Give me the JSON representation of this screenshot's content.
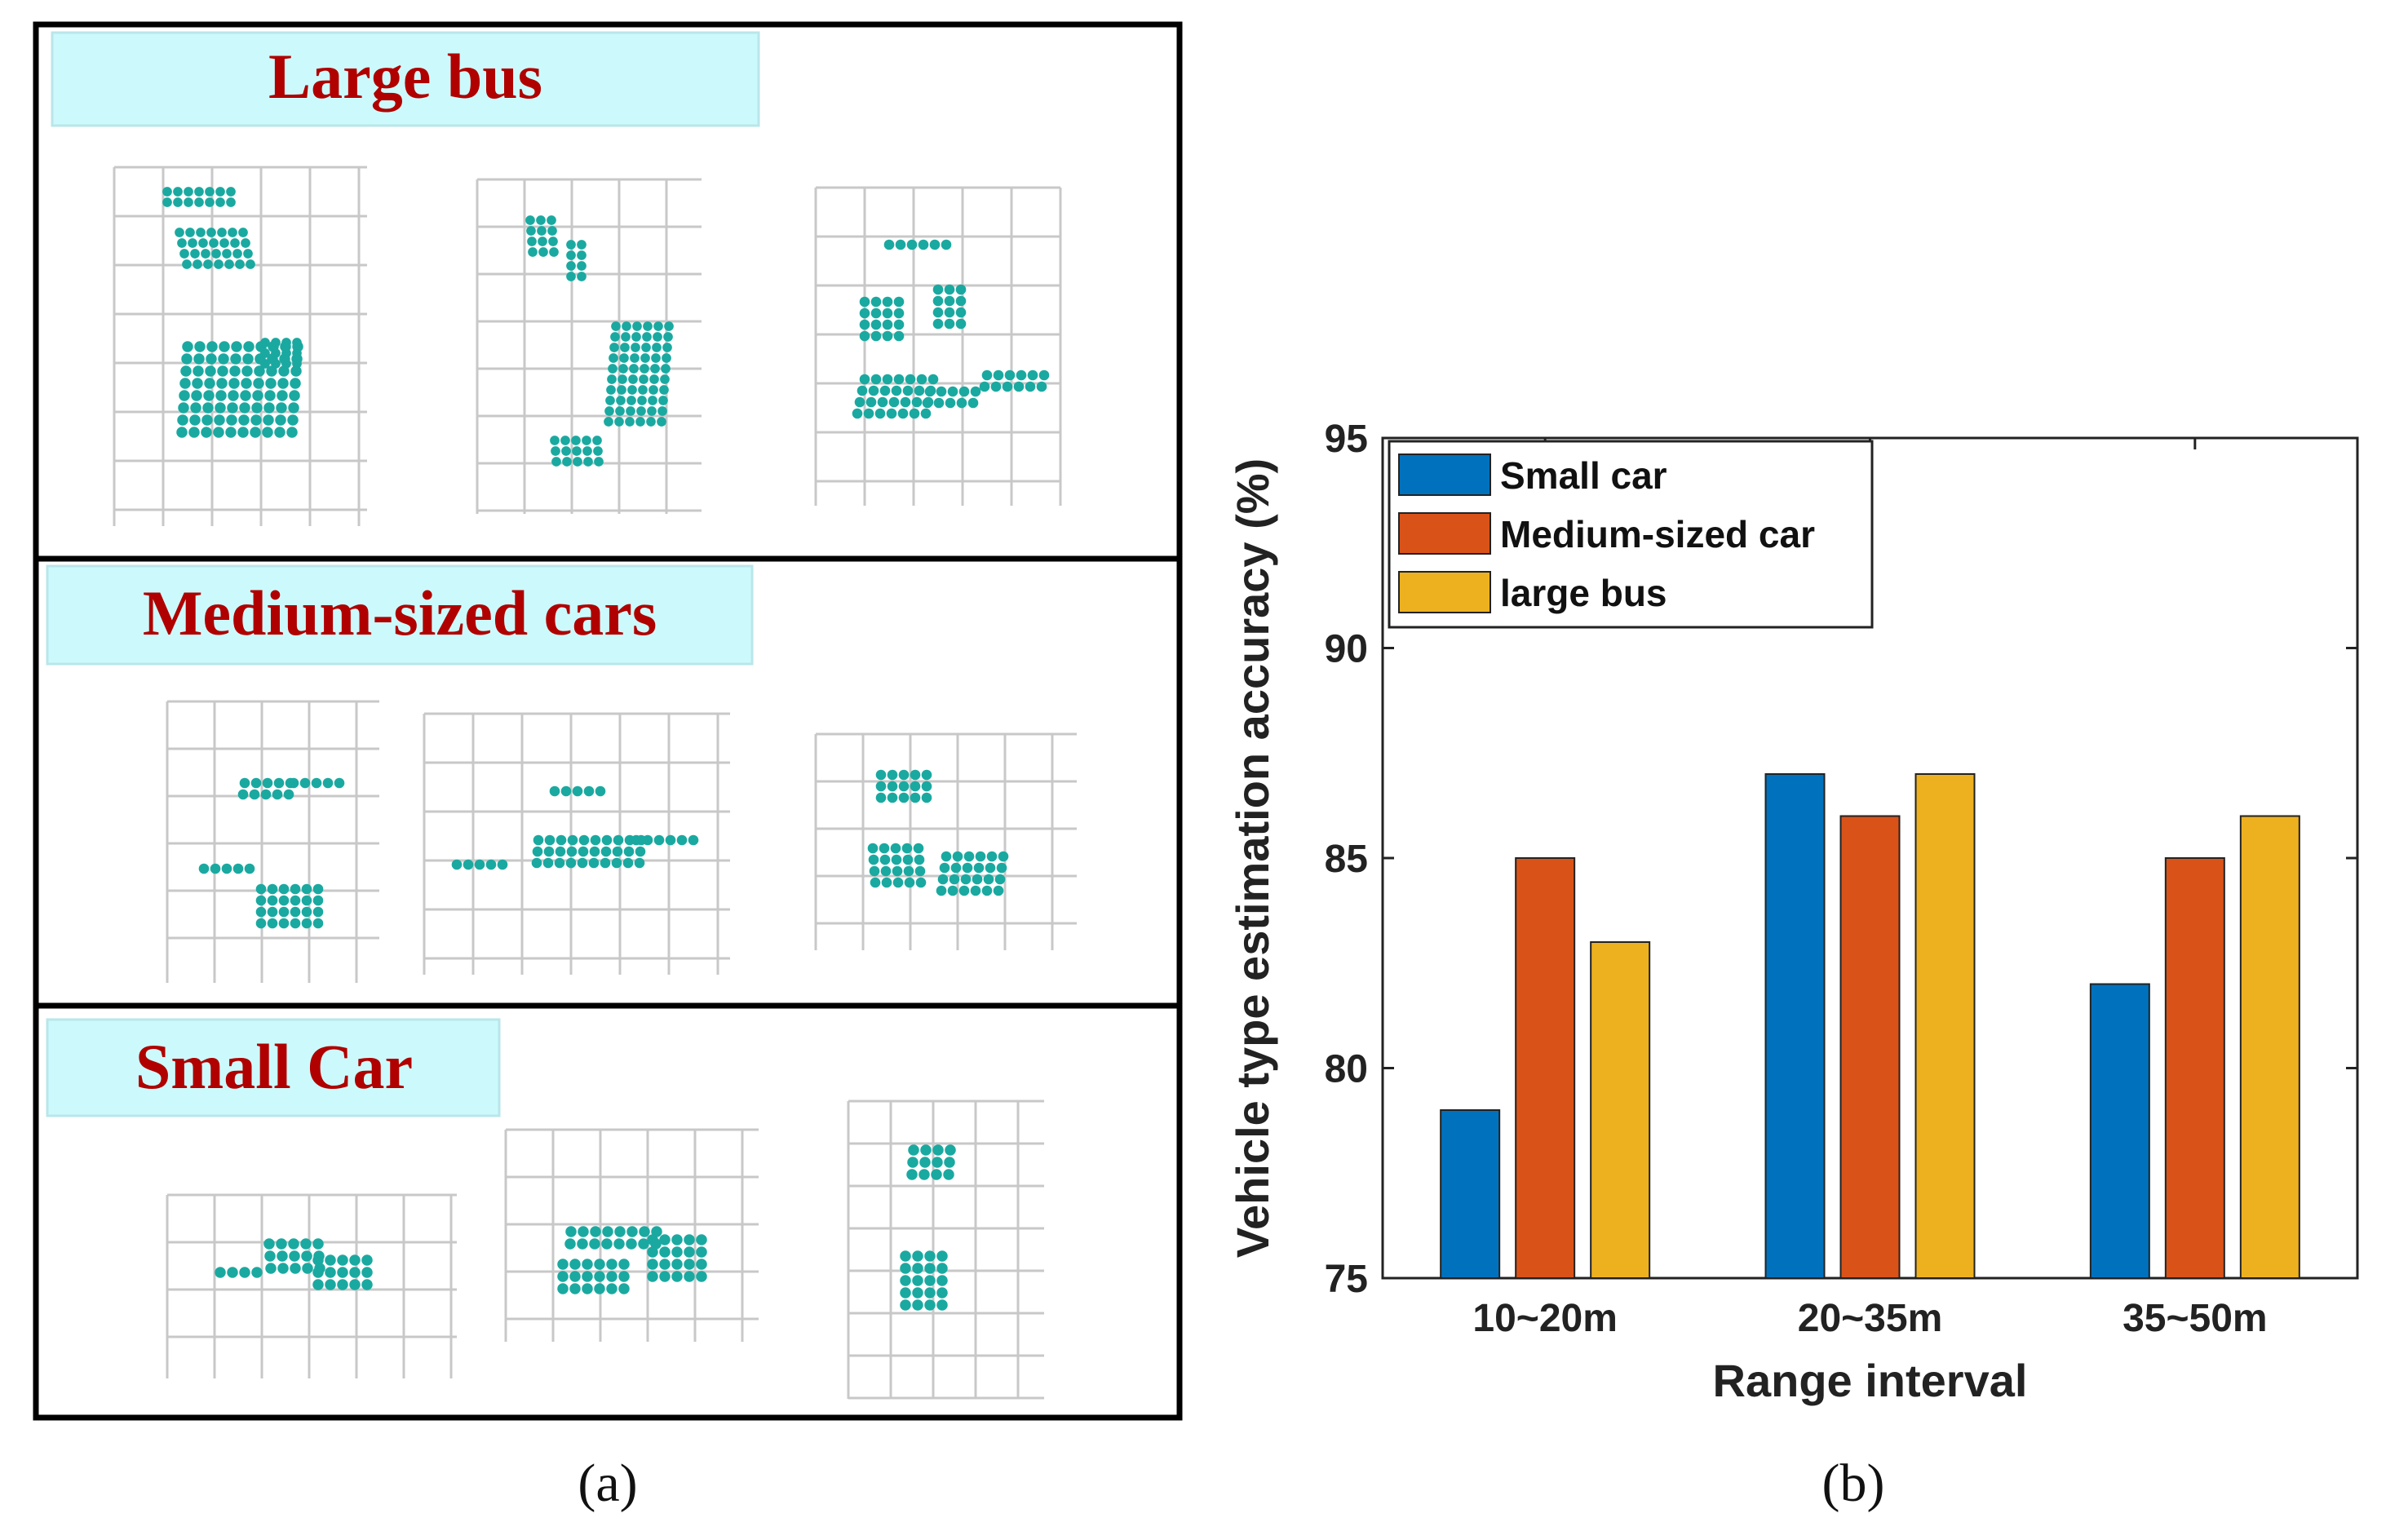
{
  "panel_a": {
    "caption": "(a)",
    "sections": [
      {
        "title": "Large bus"
      },
      {
        "title": "Medium-sized cars"
      },
      {
        "title": "Small Car"
      }
    ],
    "point_color": "#1aa9a0",
    "title_box_color": "#ccfafc",
    "title_text_color": "#b00000"
  },
  "panel_b": {
    "caption": "(b)"
  },
  "chart_data": {
    "type": "bar",
    "title": "",
    "xlabel": "Range interval",
    "ylabel": "Vehicle type estimation accuracy (%)",
    "categories": [
      "10~20m",
      "20~35m",
      "35~50m"
    ],
    "ylim": [
      75,
      95
    ],
    "yticks": [
      75,
      80,
      85,
      90,
      95
    ],
    "legend_position": "top-left",
    "grid": false,
    "series": [
      {
        "name": "Small car",
        "color": "#0072bd",
        "values": [
          79,
          87,
          82
        ]
      },
      {
        "name": "Medium-sized car",
        "color": "#d95319",
        "values": [
          85,
          86,
          85
        ]
      },
      {
        "name": "large bus",
        "color": "#edb120",
        "values": [
          83,
          87,
          86
        ]
      }
    ]
  }
}
